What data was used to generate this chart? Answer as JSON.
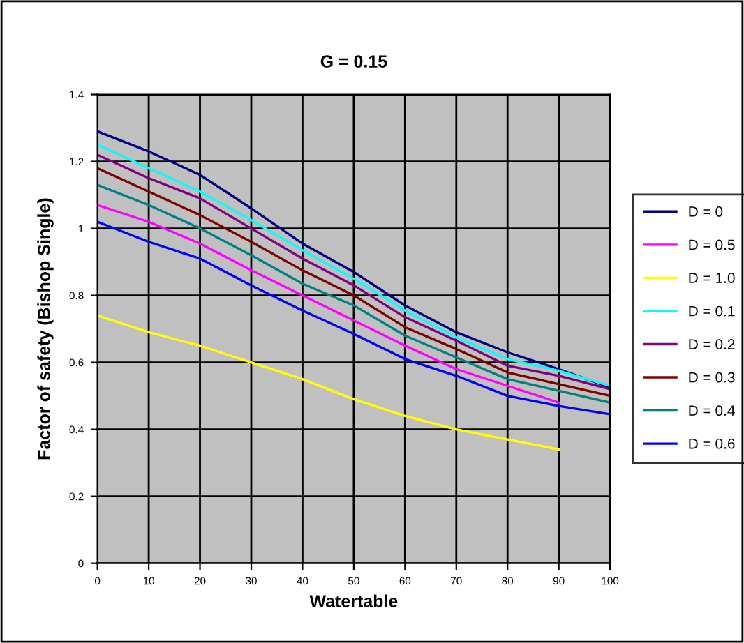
{
  "chart_data": {
    "type": "line",
    "title": "G = 0.15",
    "xlabel": "Watertable",
    "ylabel": "Factor of safety (Bishop Single)",
    "x": [
      0,
      10,
      20,
      30,
      40,
      50,
      60,
      70,
      80,
      90,
      100
    ],
    "series": [
      {
        "name": "D = 0",
        "color": "#000080",
        "values": [
          1.29,
          1.23,
          1.16,
          1.06,
          0.955,
          0.87,
          0.77,
          0.69,
          0.63,
          0.58,
          0.525
        ]
      },
      {
        "name": "D = 0.5",
        "color": "#ff00ff",
        "values": [
          1.07,
          1.02,
          0.955,
          0.875,
          0.8,
          0.725,
          0.65,
          0.58,
          0.53,
          0.48,
          null
        ]
      },
      {
        "name": "D = 1.0",
        "color": "#ffff00",
        "values": [
          0.74,
          0.69,
          0.65,
          0.6,
          0.55,
          0.49,
          0.44,
          0.4,
          0.37,
          0.34,
          null
        ]
      },
      {
        "name": "D = 0.1",
        "color": "#00ffff",
        "values": [
          1.25,
          1.18,
          1.11,
          1.025,
          0.935,
          0.85,
          0.755,
          0.675,
          0.61,
          0.575,
          0.53
        ]
      },
      {
        "name": "D = 0.2",
        "color": "#800080",
        "values": [
          1.22,
          1.15,
          1.09,
          1.0,
          0.91,
          0.83,
          0.735,
          0.665,
          0.59,
          0.56,
          0.52
        ]
      },
      {
        "name": "D = 0.3",
        "color": "#800000",
        "values": [
          1.18,
          1.11,
          1.04,
          0.96,
          0.875,
          0.8,
          0.705,
          0.64,
          0.57,
          0.535,
          0.5
        ]
      },
      {
        "name": "D = 0.4",
        "color": "#008080",
        "values": [
          1.13,
          1.07,
          1.0,
          0.92,
          0.835,
          0.77,
          0.68,
          0.615,
          0.55,
          0.515,
          0.48
        ]
      },
      {
        "name": "D = 0.6",
        "color": "#0000ff",
        "values": [
          1.02,
          0.96,
          0.91,
          0.83,
          0.755,
          0.685,
          0.61,
          0.56,
          0.5,
          0.47,
          0.445
        ]
      }
    ],
    "xlim": [
      0,
      100
    ],
    "xticks": [
      0,
      10,
      20,
      30,
      40,
      50,
      60,
      70,
      80,
      90,
      100
    ],
    "ylim": [
      0,
      1.4
    ],
    "yticks": [
      0,
      0.2,
      0.4,
      0.6,
      0.8,
      1,
      1.2,
      1.4
    ],
    "grid": true,
    "legend": "right",
    "marker": "none",
    "line_style": "solid"
  }
}
